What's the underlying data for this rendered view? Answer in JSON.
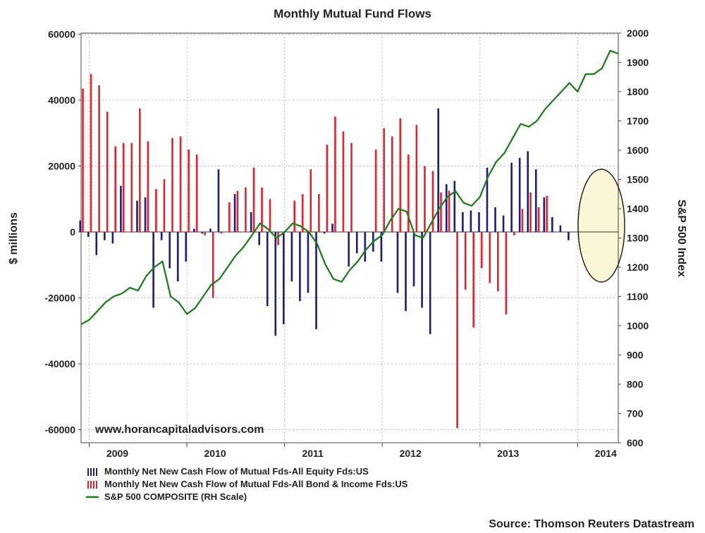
{
  "chart_data": {
    "type": "bar",
    "title": "Monthly Mutual Fund Flows",
    "ylabel": "$ millions",
    "y2label": "S&P 500 Index",
    "ylim": [
      -65000,
      60000
    ],
    "y2lim": [
      600,
      2000
    ],
    "yticks": [
      60000,
      40000,
      20000,
      0,
      -20000,
      -40000,
      -60000
    ],
    "y2ticks": [
      2000,
      1900,
      1800,
      1700,
      1600,
      1500,
      1400,
      1300,
      1200,
      1100,
      1000,
      900,
      800,
      700,
      600
    ],
    "x_start": "2008-12",
    "x_end": "2014-06",
    "year_labels": [
      "2009",
      "2010",
      "2011",
      "2012",
      "2013",
      "2014"
    ],
    "grid": true,
    "watermark": "www.horancapitaladvisors.com",
    "source": "Source: Thomson Reuters Datastream",
    "legend": [
      {
        "label": "Monthly Net New Cash Flow of Mutual Fds-All Equity Fds:US",
        "color": "#1c1c80"
      },
      {
        "label": "Monthly Net New Cash Flow of Mutual Fds-All Bond & Income Fds:US",
        "color": "#e8202a"
      },
      {
        "label": "S&P 500 COMPOSITE (RH Scale)",
        "color": "#1e7d1e"
      }
    ],
    "months": [
      "2008-12",
      "2009-01",
      "2009-02",
      "2009-03",
      "2009-04",
      "2009-05",
      "2009-06",
      "2009-07",
      "2009-08",
      "2009-09",
      "2009-10",
      "2009-11",
      "2009-12",
      "2010-01",
      "2010-02",
      "2010-03",
      "2010-04",
      "2010-05",
      "2010-06",
      "2010-07",
      "2010-08",
      "2010-09",
      "2010-10",
      "2010-11",
      "2010-12",
      "2011-01",
      "2011-02",
      "2011-03",
      "2011-04",
      "2011-05",
      "2011-06",
      "2011-07",
      "2011-08",
      "2011-09",
      "2011-10",
      "2011-11",
      "2011-12",
      "2012-01",
      "2012-02",
      "2012-03",
      "2012-04",
      "2012-05",
      "2012-06",
      "2012-07",
      "2012-08",
      "2012-09",
      "2012-10",
      "2012-11",
      "2012-12",
      "2013-01",
      "2013-02",
      "2013-03",
      "2013-04",
      "2013-05",
      "2013-06",
      "2013-07",
      "2013-08",
      "2013-09",
      "2013-10",
      "2013-11",
      "2013-12",
      "2014-01",
      "2014-02",
      "2014-03",
      "2014-04",
      "2014-05"
    ],
    "series": [
      {
        "name": "Monthly Net New Cash Flow of Mutual Fds-All Equity Fds:US",
        "color": "#1c1c80",
        "values": [
          3500,
          -1500,
          -7000,
          -2500,
          -3500,
          14000,
          null,
          9500,
          10500,
          -23000,
          -2500,
          -11000,
          -15000,
          -9000,
          1000,
          -500,
          1000,
          19000,
          null,
          11500,
          null,
          6000,
          -4000,
          -22500,
          -31500,
          -28000,
          -15000,
          -21000,
          -18500,
          -29500,
          -500,
          2500,
          null,
          -10500,
          -6500,
          -9000,
          -6000,
          -9000,
          null,
          -18500,
          -24000,
          -16500,
          -23000,
          -31000,
          37500,
          14500,
          15500,
          6000,
          6500,
          6000,
          19500,
          7500,
          5000,
          21000,
          22500,
          24500,
          19000,
          10500,
          4500,
          2000,
          -2500,
          null,
          null,
          null,
          null,
          null
        ],
        "note": "sparse / approximate"
      },
      {
        "name": "Monthly Net New Cash Flow of Mutual Fds-All Bond & Income Fds:US",
        "color": "#e8202a",
        "values": [
          43500,
          48000,
          44500,
          36500,
          26000,
          27000,
          27000,
          37500,
          27500,
          13000,
          16000,
          28500,
          29000,
          25000,
          23500,
          -1000,
          -20000,
          -500,
          9000,
          12500,
          13500,
          19500,
          13500,
          10000,
          -4000,
          null,
          9500,
          11500,
          19000,
          11500,
          26500,
          35000,
          30500,
          27000,
          null,
          null,
          25000,
          31500,
          29000,
          34500,
          23500,
          32500,
          20000,
          18500,
          12000,
          12500,
          -59500,
          -17500,
          -29000,
          -11000,
          -15500,
          -18000,
          -25000,
          -1000,
          7000,
          12000,
          7500,
          11000,
          null,
          null,
          null,
          null,
          null,
          null,
          null,
          null
        ],
        "note": "sparse / approximate"
      },
      {
        "name": "S&P 500 COMPOSITE (RH Scale)",
        "color": "#1e7d1e",
        "axis": "right",
        "x": [
          "2008-12",
          "2009-01",
          "2009-02",
          "2009-03",
          "2009-04",
          "2009-05",
          "2009-06",
          "2009-07",
          "2009-08",
          "2009-09",
          "2009-10",
          "2009-11",
          "2009-12",
          "2010-01",
          "2010-02",
          "2010-03",
          "2010-04",
          "2010-05",
          "2010-06",
          "2010-07",
          "2010-08",
          "2010-09",
          "2010-10",
          "2010-11",
          "2010-12",
          "2011-01",
          "2011-02",
          "2011-03",
          "2011-04",
          "2011-05",
          "2011-06",
          "2011-07",
          "2011-08",
          "2011-09",
          "2011-10",
          "2011-11",
          "2011-12",
          "2012-01",
          "2012-02",
          "2012-03",
          "2012-04",
          "2012-05",
          "2012-06",
          "2012-07",
          "2012-08",
          "2012-09",
          "2012-10",
          "2012-11",
          "2012-12",
          "2013-01",
          "2013-02",
          "2013-03",
          "2013-04",
          "2013-05",
          "2013-06",
          "2013-07",
          "2013-08",
          "2013-09",
          "2013-10",
          "2013-11",
          "2013-12",
          "2014-01",
          "2014-02",
          "2014-03",
          "2014-04",
          "2014-05",
          "2014-06"
        ],
        "values": [
          1005,
          1020,
          1050,
          1080,
          1100,
          1110,
          1130,
          1120,
          1170,
          1200,
          1220,
          1100,
          1080,
          1040,
          1060,
          1100,
          1140,
          1160,
          1200,
          1240,
          1270,
          1310,
          1350,
          1330,
          1300,
          1320,
          1350,
          1340,
          1320,
          1280,
          1210,
          1160,
          1150,
          1190,
          1220,
          1260,
          1290,
          1310,
          1360,
          1400,
          1390,
          1310,
          1300,
          1350,
          1400,
          1440,
          1460,
          1420,
          1410,
          1440,
          1510,
          1560,
          1590,
          1640,
          1690,
          1680,
          1700,
          1740,
          1770,
          1800,
          1830,
          1800,
          1860,
          1860,
          1880,
          1940,
          1930
        ]
      }
    ]
  }
}
